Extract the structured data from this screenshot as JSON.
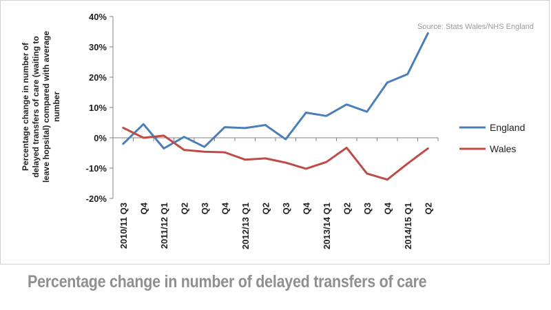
{
  "chart_data": {
    "type": "line",
    "title": "Percentage change in number of delayed transfers of care",
    "source": "Source: Stats Wales/NHS England",
    "ylabel": "Percentage change in number of delayed transfers of care (waiting to leave hopsital) compared with average number",
    "ylabel_lines": [
      "Percentage change in number of",
      "delayed transfers of care (waiting to",
      "leave hopsital) compared with average",
      "number"
    ],
    "xlabel": "",
    "ylim": [
      -20,
      40
    ],
    "yticks": [
      -20,
      -10,
      0,
      10,
      20,
      30,
      40
    ],
    "ytick_labels": [
      "-20%",
      "-10%",
      "0%",
      "10%",
      "20%",
      "30%",
      "40%"
    ],
    "categories": [
      "2010/11 Q3",
      "Q4",
      "2011/12 Q1",
      "Q2",
      "Q3",
      "Q4",
      "2012/13 Q1",
      "Q2",
      "Q3",
      "Q4",
      "2013/14 Q1",
      "Q2",
      "Q3",
      "Q4",
      "2014/15 Q1",
      "Q2"
    ],
    "series": [
      {
        "name": "England",
        "color": "#4a7ebb",
        "values": [
          -2,
          4.5,
          -3.5,
          0.3,
          -3,
          3.5,
          3.2,
          4.2,
          -0.5,
          8.3,
          7.2,
          11,
          8.6,
          18.2,
          21,
          34.5
        ]
      },
      {
        "name": "Wales",
        "color": "#be4b48",
        "values": [
          3.3,
          0,
          0.7,
          -4,
          -4.6,
          -4.8,
          -7.2,
          -6.8,
          -8.2,
          -10.2,
          -8,
          -3.3,
          -11.8,
          -13.8,
          -8.5,
          -3.5
        ]
      }
    ],
    "legend_position": "right",
    "grid": false
  }
}
